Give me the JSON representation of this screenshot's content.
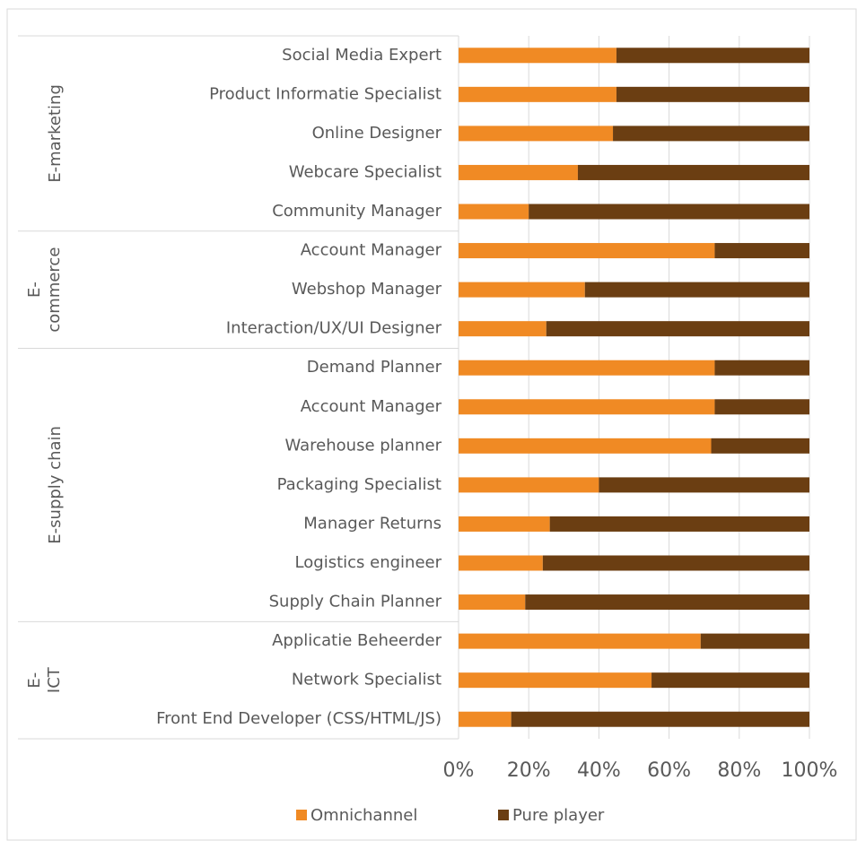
{
  "chart_data": {
    "type": "stacked_bar_horizontal",
    "groups": [
      {
        "name": "E-marketing",
        "categories": [
          "Social Media Expert",
          "Product Informatie Specialist",
          "Online Designer",
          "Webcare Specialist",
          "Community Manager"
        ]
      },
      {
        "name": "E-commerce",
        "categories": [
          "Account Manager",
          "Webshop Manager",
          "Interaction/UX/UI Designer"
        ]
      },
      {
        "name": "E-supply chain",
        "categories": [
          "Demand Planner",
          "Account Manager",
          "Warehouse planner",
          "Packaging Specialist",
          "Manager Returns",
          "Logistics engineer",
          "Supply Chain Planner"
        ]
      },
      {
        "name": "E-ICT",
        "categories": [
          "Applicatie Beheerder",
          "Network Specialist",
          "Front End Developer (CSS/HTML/JS)"
        ]
      }
    ],
    "series": [
      {
        "name": "Omnichannel",
        "color": "#f08a24",
        "values": [
          45,
          45,
          44,
          34,
          20,
          73,
          36,
          25,
          73,
          73,
          72,
          40,
          26,
          24,
          19,
          69,
          55,
          15
        ]
      },
      {
        "name": "Pure player",
        "color": "#6b3e12",
        "values": [
          55,
          55,
          56,
          66,
          80,
          27,
          64,
          75,
          27,
          27,
          28,
          60,
          74,
          76,
          81,
          31,
          45,
          85
        ]
      }
    ],
    "xlim": [
      0,
      100
    ],
    "xticks": [
      {
        "value": 0,
        "label": "0%"
      },
      {
        "value": 20,
        "label": "20%"
      },
      {
        "value": 40,
        "label": "40%"
      },
      {
        "value": 60,
        "label": "60%"
      },
      {
        "value": 80,
        "label": "80%"
      },
      {
        "value": 100,
        "label": "100%"
      }
    ],
    "grid": true,
    "legend": "bottom"
  }
}
